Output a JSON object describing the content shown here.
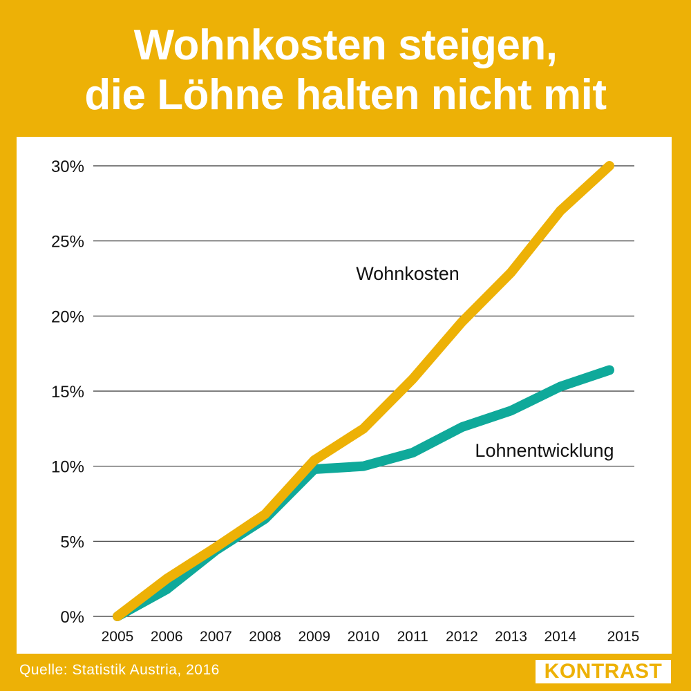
{
  "title": {
    "line1": "Wohnkosten steigen,",
    "line2": "die Löhne halten nicht mit"
  },
  "source": "Quelle: Statistik Austria, 2016",
  "logo": "KONTRAST",
  "colors": {
    "background": "#EDB106",
    "wohnkosten": "#EDB106",
    "lohnentwicklung": "#0FA99A",
    "gridline": "#333333"
  },
  "chart_data": {
    "type": "line",
    "title": "Wohnkosten steigen, die Löhne halten nicht mit",
    "xlabel": "",
    "ylabel": "",
    "categories": [
      "2005",
      "2006",
      "2007",
      "2008",
      "2009",
      "2010",
      "2011",
      "2012",
      "2013",
      "2014",
      "2015"
    ],
    "y_ticks": [
      0,
      5,
      10,
      15,
      20,
      25,
      30
    ],
    "y_tick_labels": [
      "0%",
      "5%",
      "10%",
      "15%",
      "20%",
      "25%",
      "30%"
    ],
    "ylim": [
      0,
      30
    ],
    "grid": true,
    "series": [
      {
        "name": "Wohnkosten",
        "color": "#EDB106",
        "values": [
          0,
          2.5,
          4.6,
          6.8,
          10.4,
          12.5,
          15.8,
          19.6,
          22.9,
          27.0,
          30.0
        ]
      },
      {
        "name": "Lohnentwicklung",
        "color": "#0FA99A",
        "values": [
          0,
          1.8,
          4.4,
          6.5,
          9.8,
          10.0,
          10.9,
          12.6,
          13.7,
          15.3,
          16.4
        ]
      }
    ]
  }
}
